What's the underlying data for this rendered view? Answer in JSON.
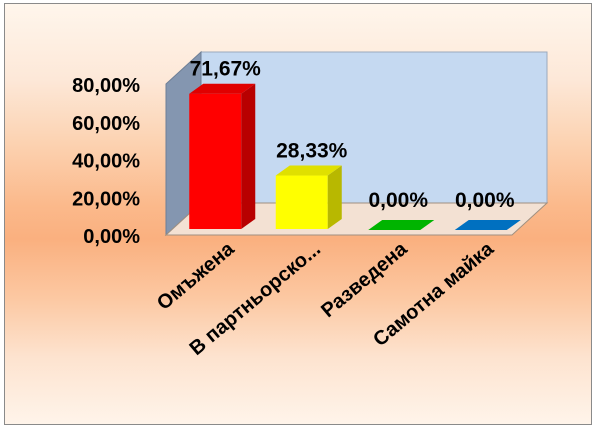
{
  "chart_data": {
    "type": "bar",
    "style": "3d-column",
    "categories": [
      "Омъжена",
      "В партньорско...",
      "Разведена",
      "Самотна майка"
    ],
    "values": [
      71.67,
      28.33,
      0.0,
      0.0
    ],
    "data_labels": [
      "71,67%",
      "28,33%",
      "0,00%",
      "0,00%"
    ],
    "y_ticks": [
      "0,00%",
      "20,00%",
      "40,00%",
      "60,00%",
      "80,00%"
    ],
    "ylim": [
      0,
      80
    ],
    "title": "",
    "xlabel": "",
    "ylabel": "",
    "legend": "none",
    "grid": false,
    "colors": {
      "bars": [
        "#ff0000",
        "#ffff00",
        "#00b400",
        "#0070c0"
      ],
      "back_wall": "#c5d9f1",
      "side_wall": "#8496b0",
      "floor": "#f3e1d3"
    }
  }
}
